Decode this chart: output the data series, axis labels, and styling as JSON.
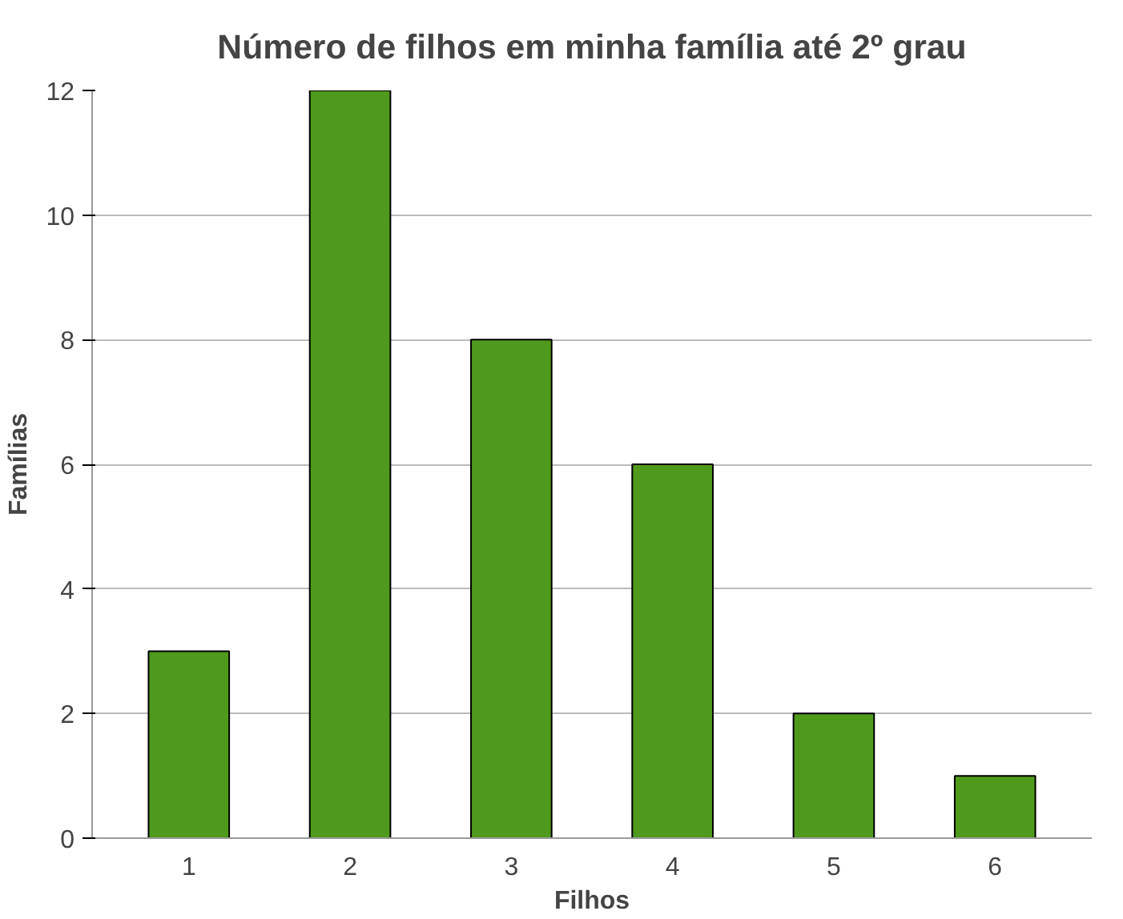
{
  "chart_data": {
    "type": "bar",
    "title": "Número de filhos em minha família até 2º grau",
    "xlabel": "Filhos",
    "ylabel": "Famílias",
    "categories": [
      "1",
      "2",
      "3",
      "4",
      "5",
      "6"
    ],
    "values": [
      3,
      12,
      8,
      6,
      2,
      1
    ],
    "color": "#4f9a1c",
    "ylim": [
      0,
      12
    ],
    "yticks": [
      0,
      2,
      4,
      6,
      8,
      10,
      12
    ],
    "grid": "y"
  }
}
